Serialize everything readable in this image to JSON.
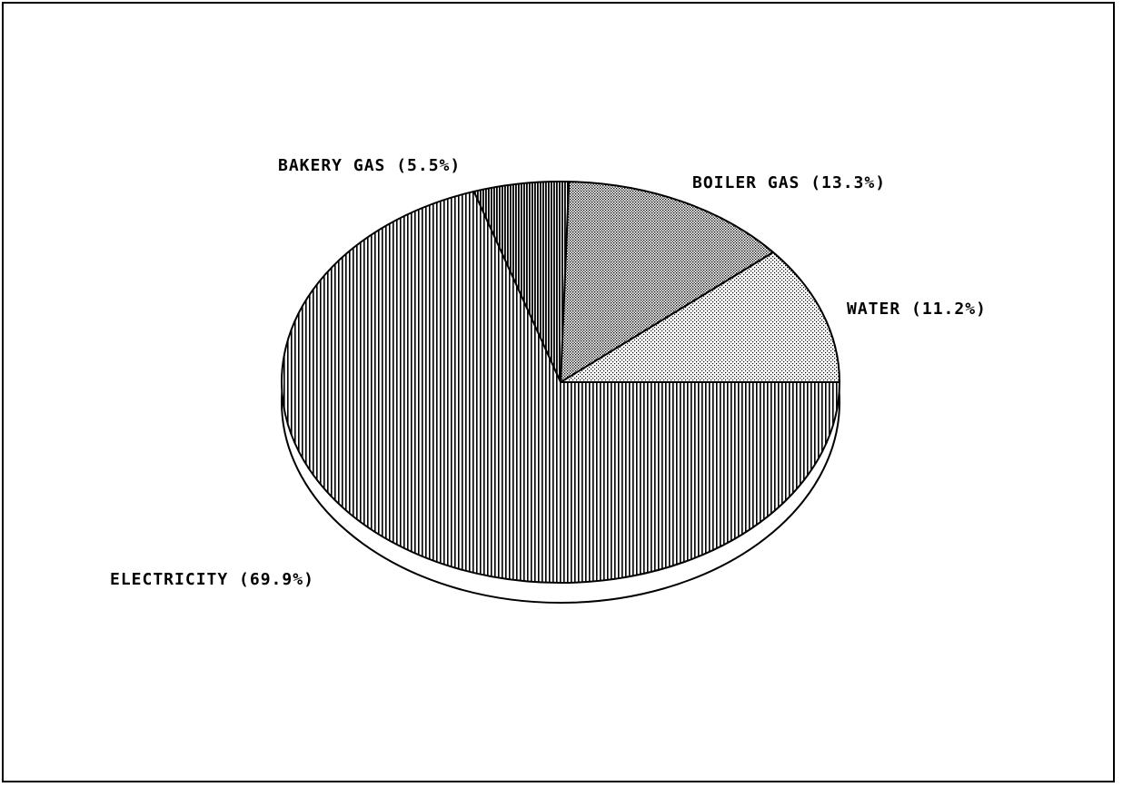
{
  "chart_data": {
    "type": "pie",
    "title": "",
    "start_angle_deg": 0,
    "direction": "counterclockwise",
    "three_d": true,
    "slices": [
      {
        "label": "WATER (11.2%)",
        "category": "WATER",
        "value": 11.2,
        "pattern": "dots-light"
      },
      {
        "label": "BOILER GAS (13.3%)",
        "category": "BOILER GAS",
        "value": 13.3,
        "pattern": "dots-dense"
      },
      {
        "label": "BAKERY GAS (5.5%)",
        "category": "BAKERY GAS",
        "value": 5.5,
        "pattern": "vlines-dense"
      },
      {
        "label": "ELECTRICITY (69.9%)",
        "category": "ELECTRICITY",
        "value": 69.9,
        "pattern": "vlines"
      }
    ],
    "colors": {
      "ink": "#000000",
      "paper": "#ffffff"
    }
  }
}
